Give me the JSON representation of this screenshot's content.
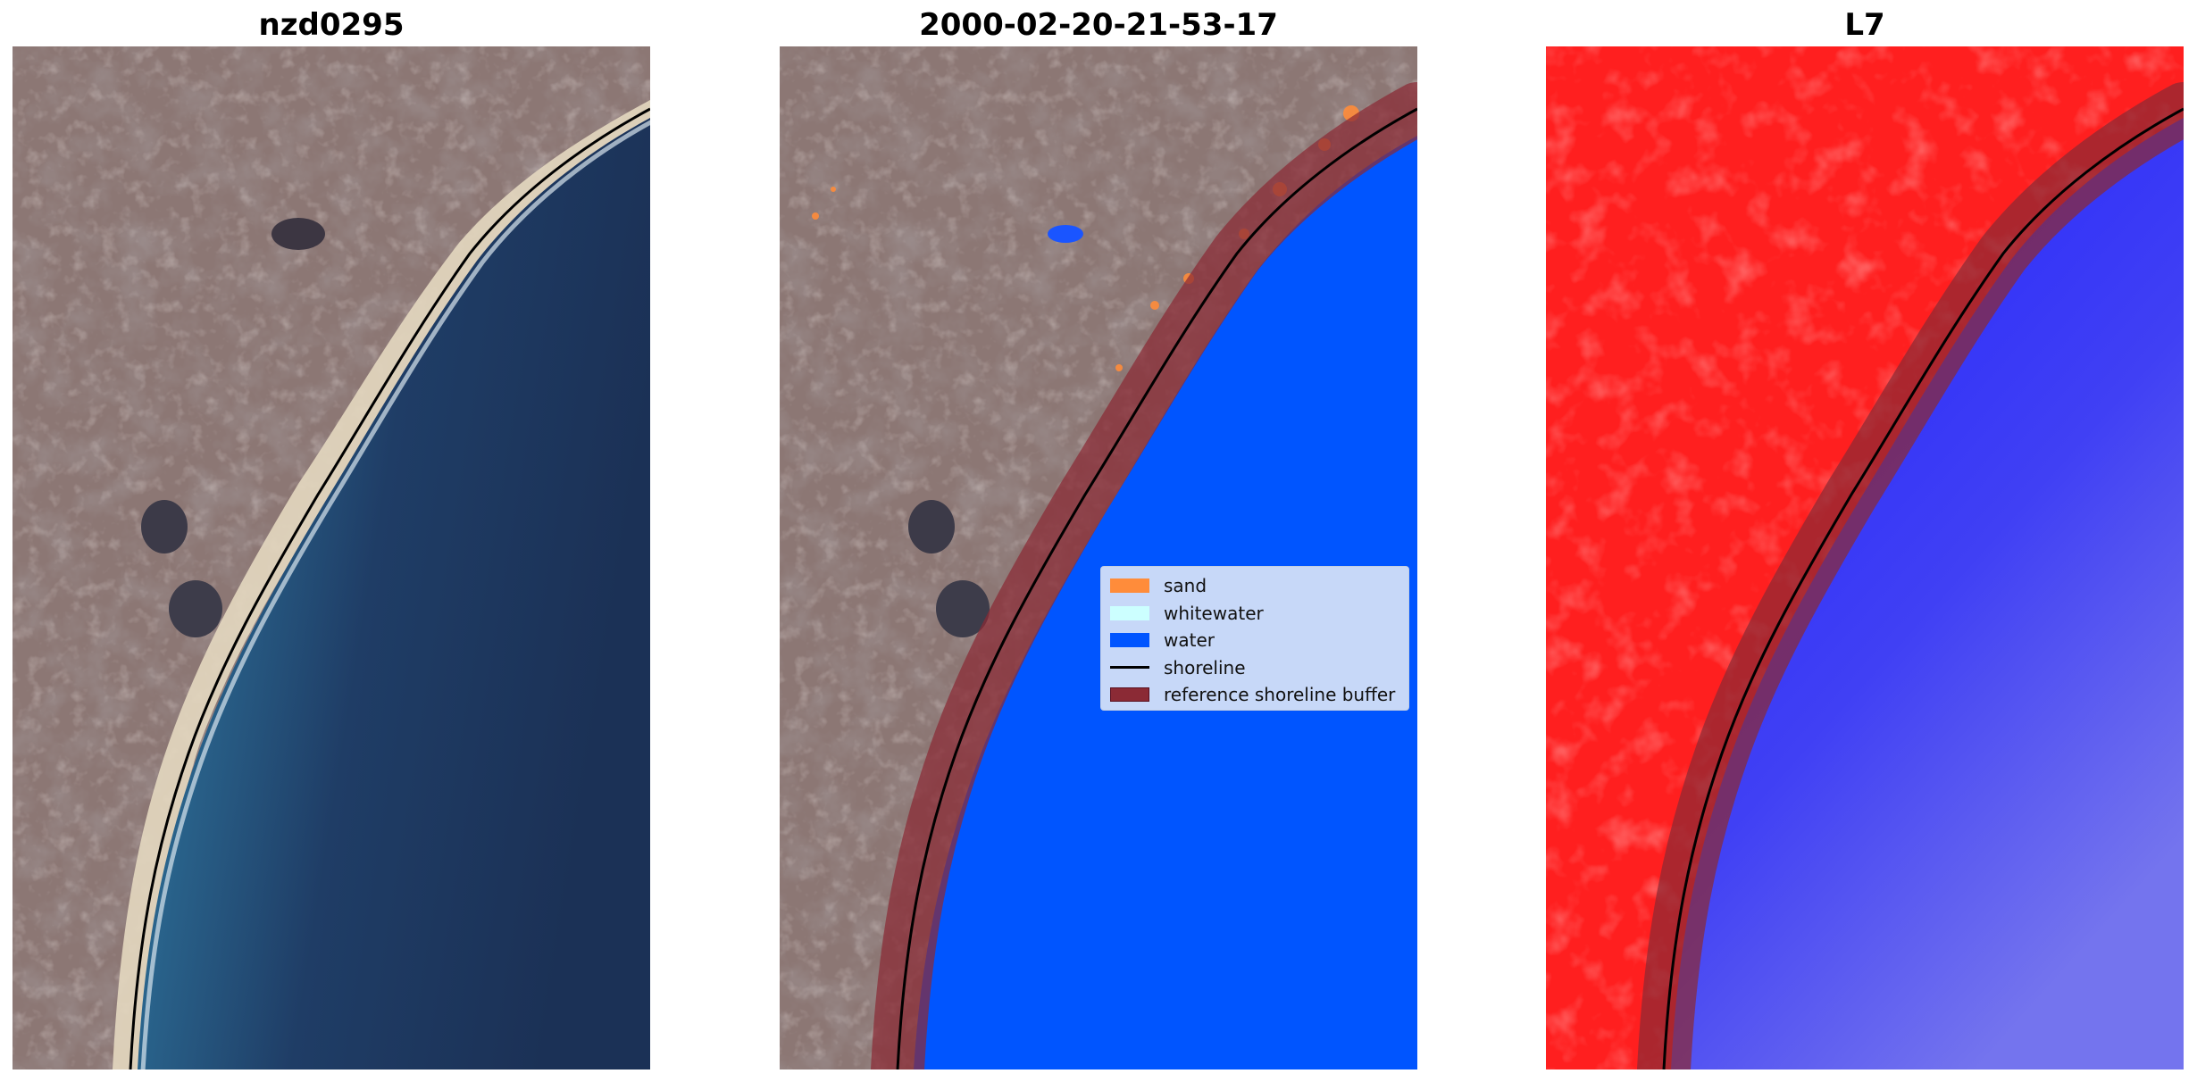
{
  "panels": [
    {
      "title": "nzd0295",
      "image": "true-color satellite image of coastline"
    },
    {
      "title": "2000-02-20-21-53-17",
      "image": "classified image with reference shoreline buffer"
    },
    {
      "title": "L7",
      "image": "water index image with reference shoreline buffer"
    }
  ],
  "legend": {
    "items": [
      {
        "label": "sand",
        "color": "#ff8c3a"
      },
      {
        "label": "whitewater",
        "color": "#ccffff"
      },
      {
        "label": "water",
        "color": "#0055ff"
      },
      {
        "label": "shoreline",
        "color": "#000000",
        "type": "line"
      },
      {
        "label": "reference shoreline buffer",
        "color": "#8b2a35",
        "edge": "#5a1020"
      }
    ]
  },
  "colors": {
    "land": "#8a7572",
    "ocean_deep": "#1d3558",
    "ocean_shallow": "#2e6e98",
    "beach_sand": "#e6dcc4",
    "index_land": "#ff2a2a",
    "index_water": "#3a3aff"
  }
}
